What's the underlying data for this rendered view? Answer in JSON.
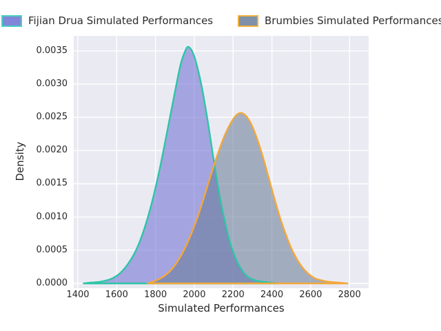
{
  "figure": {
    "background": "#ffffff",
    "plot_background": "#eaeaf2",
    "grid_color": "#ffffff",
    "text_color": "#262626"
  },
  "legend": {
    "items": [
      {
        "label": "Fijian Drua Simulated Performances",
        "swatch_fill": "#8286d8",
        "swatch_border": "#45d2c0"
      },
      {
        "label": "Brumbies Simulated Performances",
        "swatch_fill": "#7f91a9",
        "swatch_border": "#f0b13c"
      }
    ]
  },
  "chart_data": {
    "type": "area",
    "title": "",
    "xlabel": "Simulated Performances",
    "ylabel": "Density",
    "grid": true,
    "legend_position": "top",
    "xlim": [
      1378,
      2899
    ],
    "ylim": [
      0,
      0.00373
    ],
    "x_ticks": [
      1400,
      1600,
      1800,
      2000,
      2200,
      2400,
      2600,
      2800
    ],
    "x_tick_labels": [
      "1400",
      "1600",
      "1800",
      "2000",
      "2200",
      "2400",
      "2600",
      "2800"
    ],
    "y_ticks": [
      0.0,
      0.0005,
      0.001,
      0.0015,
      0.002,
      0.0025,
      0.003,
      0.0035
    ],
    "y_tick_labels": [
      "0.0000",
      "0.0005",
      "0.0010",
      "0.0015",
      "0.0020",
      "0.0025",
      "0.0030",
      "0.0035"
    ],
    "series": [
      {
        "name": "Fijian Drua Simulated Performances",
        "line_color": "#2dc5a6",
        "fill_color": "rgba(105,105,210,0.55)",
        "peak": {
          "x": 1970,
          "density": 0.00356
        },
        "points": [
          [
            1430,
            0
          ],
          [
            1460,
            1e-05
          ],
          [
            1500,
            2e-05
          ],
          [
            1540,
            4e-05
          ],
          [
            1580,
            8e-05
          ],
          [
            1620,
            0.00016
          ],
          [
            1660,
            0.0003
          ],
          [
            1700,
            0.0005
          ],
          [
            1740,
            0.0008
          ],
          [
            1780,
            0.0012
          ],
          [
            1820,
            0.0017
          ],
          [
            1860,
            0.00228
          ],
          [
            1900,
            0.00288
          ],
          [
            1930,
            0.0033
          ],
          [
            1955,
            0.00351
          ],
          [
            1970,
            0.00356
          ],
          [
            1990,
            0.00349
          ],
          [
            2010,
            0.00332
          ],
          [
            2040,
            0.00294
          ],
          [
            2070,
            0.00243
          ],
          [
            2100,
            0.00186
          ],
          [
            2130,
            0.00133
          ],
          [
            2160,
            0.0009
          ],
          [
            2190,
            0.00056
          ],
          [
            2220,
            0.00033
          ],
          [
            2250,
            0.00018
          ],
          [
            2280,
            9e-05
          ],
          [
            2310,
            5e-05
          ],
          [
            2340,
            3e-05
          ],
          [
            2370,
            2e-05
          ],
          [
            2400,
            1e-05
          ],
          [
            2430,
            0
          ]
        ]
      },
      {
        "name": "Brumbies Simulated Performances",
        "line_color": "#f3a83b",
        "fill_color": "rgba(100,120,150,0.55)",
        "peak": {
          "x": 2230,
          "density": 0.00256
        },
        "points": [
          [
            1760,
            0
          ],
          [
            1800,
            4e-05
          ],
          [
            1840,
            0.0001
          ],
          [
            1880,
            0.0002
          ],
          [
            1920,
            0.00036
          ],
          [
            1960,
            0.00058
          ],
          [
            2000,
            0.00086
          ],
          [
            2040,
            0.0012
          ],
          [
            2080,
            0.00158
          ],
          [
            2120,
            0.00194
          ],
          [
            2160,
            0.00225
          ],
          [
            2200,
            0.00247
          ],
          [
            2230,
            0.00256
          ],
          [
            2260,
            0.00254
          ],
          [
            2290,
            0.00242
          ],
          [
            2320,
            0.00221
          ],
          [
            2350,
            0.00194
          ],
          [
            2380,
            0.00163
          ],
          [
            2410,
            0.00131
          ],
          [
            2440,
            0.00101
          ],
          [
            2470,
            0.00075
          ],
          [
            2500,
            0.00053
          ],
          [
            2530,
            0.00036
          ],
          [
            2560,
            0.00023
          ],
          [
            2590,
            0.00014
          ],
          [
            2620,
            8e-05
          ],
          [
            2650,
            5e-05
          ],
          [
            2680,
            3e-05
          ],
          [
            2710,
            2e-05
          ],
          [
            2750,
            1e-05
          ],
          [
            2790,
            0
          ]
        ]
      }
    ]
  }
}
